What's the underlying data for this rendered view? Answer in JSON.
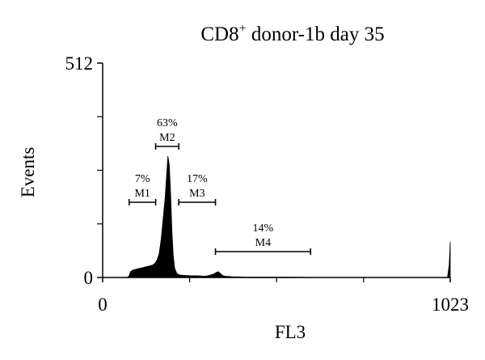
{
  "chart_data": {
    "type": "histogram",
    "title": {
      "prefix": "CD8",
      "superscript": "+",
      "suffix": " donor-1b day 35"
    },
    "xlabel": "FL3",
    "ylabel": "Events",
    "xlim": [
      0,
      1023
    ],
    "ylim": [
      0,
      512
    ],
    "x_tick_labels": [
      "0",
      "1023"
    ],
    "x_tick_values": [
      0,
      1023
    ],
    "y_tick_labels": [
      "0",
      "512"
    ],
    "y_tick_values": [
      0,
      512
    ],
    "y_minor_ticks": [
      128,
      256,
      384
    ],
    "x_minor_ticks": [
      256,
      512,
      768
    ],
    "grid": false,
    "legend": "none",
    "color": "#000000",
    "gates": [
      {
        "name": "M1",
        "percent": "7%",
        "x_start": 78,
        "x_end": 156
      },
      {
        "name": "M2",
        "percent": "63%",
        "x_start": 156,
        "x_end": 224
      },
      {
        "name": "M3",
        "percent": "17%",
        "x_start": 224,
        "x_end": 332
      },
      {
        "name": "M4",
        "percent": "14%",
        "x_start": 332,
        "x_end": 612
      }
    ],
    "histogram_profile": [
      [
        72,
        0
      ],
      [
        78,
        4
      ],
      [
        82,
        14
      ],
      [
        90,
        18
      ],
      [
        100,
        20
      ],
      [
        110,
        22
      ],
      [
        120,
        24
      ],
      [
        130,
        26
      ],
      [
        140,
        28
      ],
      [
        148,
        30
      ],
      [
        154,
        34
      ],
      [
        160,
        42
      ],
      [
        166,
        56
      ],
      [
        172,
        90
      ],
      [
        178,
        140
      ],
      [
        184,
        190
      ],
      [
        188,
        240
      ],
      [
        192,
        290
      ],
      [
        196,
        270
      ],
      [
        200,
        200
      ],
      [
        204,
        110
      ],
      [
        208,
        50
      ],
      [
        212,
        22
      ],
      [
        218,
        10
      ],
      [
        226,
        6
      ],
      [
        240,
        5
      ],
      [
        260,
        4
      ],
      [
        280,
        4
      ],
      [
        300,
        3
      ],
      [
        310,
        4
      ],
      [
        318,
        6
      ],
      [
        326,
        8
      ],
      [
        334,
        12
      ],
      [
        340,
        14
      ],
      [
        346,
        10
      ],
      [
        352,
        5
      ],
      [
        360,
        3
      ],
      [
        380,
        2
      ],
      [
        420,
        1
      ],
      [
        500,
        1
      ],
      [
        560,
        1
      ],
      [
        620,
        0
      ],
      [
        700,
        0
      ],
      [
        900,
        0
      ],
      [
        1015,
        0
      ],
      [
        1020,
        30
      ],
      [
        1023,
        85
      ]
    ]
  }
}
